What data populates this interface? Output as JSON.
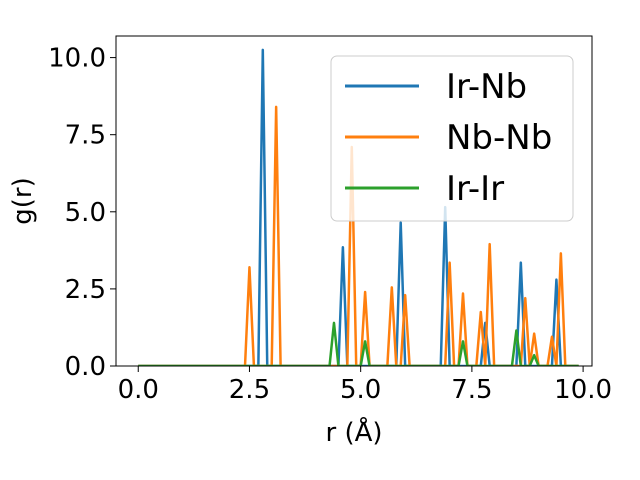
{
  "chart_data": {
    "type": "line",
    "xlabel": "r (Å)",
    "ylabel": "g(r)",
    "xlim": [
      -0.5,
      10.2
    ],
    "ylim": [
      0,
      10.7
    ],
    "xticks": [
      0.0,
      2.5,
      5.0,
      7.5,
      10.0
    ],
    "xtick_labels": [
      "0.0",
      "2.5",
      "5.0",
      "7.5",
      "10.0"
    ],
    "yticks": [
      0.0,
      2.5,
      5.0,
      7.5,
      10.0
    ],
    "ytick_labels": [
      "0.0",
      "2.5",
      "5.0",
      "7.5",
      "10.0"
    ],
    "grid": false,
    "legend_position": "top-right",
    "series": [
      {
        "name": "Ir-Nb",
        "color": "#1f77b4",
        "x": [
          0.0,
          2.7,
          2.8,
          2.9,
          4.5,
          4.6,
          4.7,
          5.8,
          5.9,
          6.0,
          6.8,
          6.9,
          7.0,
          7.7,
          7.8,
          7.9,
          8.5,
          8.6,
          8.7,
          9.3,
          9.4,
          9.5,
          9.9
        ],
        "y": [
          0.0,
          0.0,
          10.25,
          0.0,
          0.0,
          3.85,
          0.0,
          0.0,
          4.65,
          0.0,
          0.0,
          5.15,
          0.0,
          0.0,
          1.4,
          0.0,
          0.0,
          3.35,
          0.0,
          0.0,
          2.8,
          0.0,
          0.0
        ]
      },
      {
        "name": "Nb-Nb",
        "color": "#ff7f0e",
        "x": [
          0.0,
          2.4,
          2.5,
          2.6,
          3.0,
          3.1,
          3.2,
          4.7,
          4.8,
          4.9,
          5.0,
          5.1,
          5.2,
          5.6,
          5.7,
          5.8,
          5.9,
          6.0,
          6.1,
          6.9,
          7.0,
          7.1,
          7.2,
          7.3,
          7.4,
          7.6,
          7.7,
          7.8,
          7.9,
          8.0,
          8.6,
          8.7,
          8.8,
          8.9,
          9.0,
          9.2,
          9.3,
          9.4,
          9.5,
          9.6,
          9.9
        ],
        "y": [
          0.0,
          0.0,
          3.2,
          0.0,
          0.0,
          8.4,
          0.0,
          0.0,
          7.1,
          0.0,
          0.0,
          2.4,
          0.0,
          0.0,
          2.55,
          0.0,
          0.0,
          2.3,
          0.0,
          0.0,
          3.35,
          0.0,
          0.0,
          2.35,
          0.0,
          0.0,
          1.75,
          0.0,
          3.95,
          0.0,
          0.0,
          2.2,
          0.0,
          1.05,
          0.0,
          0.0,
          0.95,
          0.0,
          3.65,
          0.0,
          0.0
        ]
      },
      {
        "name": "Ir-Ir",
        "color": "#2ca02c",
        "x": [
          0.0,
          4.3,
          4.4,
          4.5,
          5.0,
          5.1,
          5.2,
          7.2,
          7.3,
          7.4,
          8.4,
          8.5,
          8.6,
          8.8,
          8.9,
          9.0,
          9.9
        ],
        "y": [
          0.0,
          0.0,
          1.4,
          0.0,
          0.0,
          0.8,
          0.0,
          0.0,
          0.8,
          0.0,
          0.0,
          1.15,
          0.0,
          0.0,
          0.35,
          0.0,
          0.0
        ]
      }
    ]
  }
}
